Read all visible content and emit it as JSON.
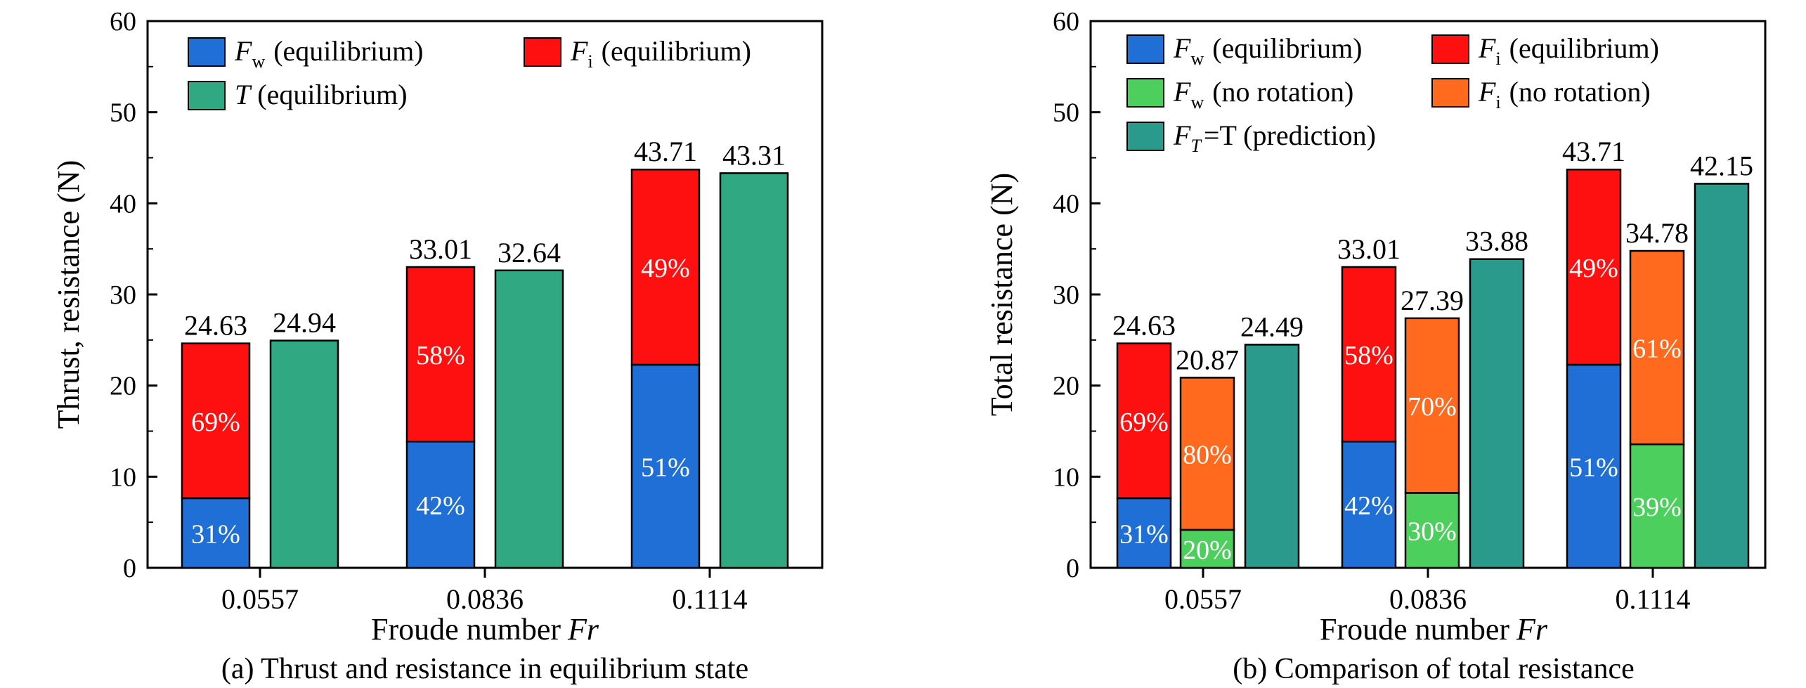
{
  "chart_data": [
    {
      "type": "bar",
      "stacked": true,
      "caption": "(a) Thrust and resistance in equilibrium state",
      "xlabel": "Froude number",
      "xlabel_symbol": "Fr",
      "ylabel": "Thrust, resistance (N)",
      "ylim": [
        0,
        60
      ],
      "yticks": [
        0,
        10,
        20,
        30,
        40,
        50,
        60
      ],
      "categories": [
        "0.0557",
        "0.0836",
        "0.1114"
      ],
      "grid": false,
      "legend_position": "top-left",
      "legend": [
        {
          "sym": "F",
          "sub": "w",
          "text": "(equilibrium)",
          "color": "#1f6fd6"
        },
        {
          "sym": "F",
          "sub": "i",
          "text": "(equilibrium)",
          "color": "#ff1010"
        },
        {
          "sym": "T",
          "sub": "",
          "text": "(equilibrium)",
          "color": "#30a882"
        }
      ],
      "bars": [
        {
          "segments": [
            {
              "values": [
                7.64,
                13.86,
                22.29
              ],
              "labels": [
                "31%",
                "42%",
                "51%"
              ],
              "color": "#1f6fd6"
            },
            {
              "values": [
                16.99,
                19.15,
                21.42
              ],
              "labels": [
                "69%",
                "58%",
                "49%"
              ],
              "color": "#ff1010"
            }
          ],
          "totals": [
            24.63,
            33.01,
            43.71
          ],
          "total_labels": [
            "24.63",
            "33.01",
            "43.71"
          ]
        },
        {
          "segments": [
            {
              "values": [
                24.94,
                32.64,
                43.31
              ],
              "labels": [
                "",
                "",
                ""
              ],
              "color": "#30a882"
            }
          ],
          "totals": [
            24.94,
            32.64,
            43.31
          ],
          "total_labels": [
            "24.94",
            "32.64",
            "43.31"
          ]
        }
      ]
    },
    {
      "type": "bar",
      "stacked": true,
      "caption": "(b) Comparison of total resistance",
      "xlabel": "Froude number",
      "xlabel_symbol": "Fr",
      "ylabel": "Total resistance (N)",
      "ylim": [
        0,
        60
      ],
      "yticks": [
        0,
        10,
        20,
        30,
        40,
        50,
        60
      ],
      "categories": [
        "0.0557",
        "0.0836",
        "0.1114"
      ],
      "grid": false,
      "legend_position": "top-left",
      "legend": [
        {
          "sym": "F",
          "sub": "w",
          "text": "(equilibrium)",
          "color": "#1f6fd6"
        },
        {
          "sym": "F",
          "sub": "i",
          "text": "(equilibrium)",
          "color": "#ff1010"
        },
        {
          "sym": "F",
          "sub": "w",
          "text": "(no rotation)",
          "color": "#4ccf5c"
        },
        {
          "sym": "F",
          "sub": "i",
          "text": "(no rotation)",
          "color": "#ff6a1f"
        },
        {
          "sym": "F",
          "sub": "T",
          "text": "=T (prediction)",
          "color": "#2a9a8c"
        }
      ],
      "bars": [
        {
          "segments": [
            {
              "values": [
                7.64,
                13.86,
                22.29
              ],
              "labels": [
                "31%",
                "42%",
                "51%"
              ],
              "color": "#1f6fd6"
            },
            {
              "values": [
                16.99,
                19.15,
                21.42
              ],
              "labels": [
                "69%",
                "58%",
                "49%"
              ],
              "color": "#ff1010"
            }
          ],
          "totals": [
            24.63,
            33.01,
            43.71
          ],
          "total_labels": [
            "24.63",
            "33.01",
            "43.71"
          ]
        },
        {
          "segments": [
            {
              "values": [
                4.17,
                8.22,
                13.56
              ],
              "labels": [
                "20%",
                "30%",
                "39%"
              ],
              "color": "#4ccf5c"
            },
            {
              "values": [
                16.7,
                19.17,
                21.22
              ],
              "labels": [
                "80%",
                "70%",
                "61%"
              ],
              "color": "#ff6a1f"
            }
          ],
          "totals": [
            20.87,
            27.39,
            34.78
          ],
          "total_labels": [
            "20.87",
            "27.39",
            "34.78"
          ]
        },
        {
          "segments": [
            {
              "values": [
                24.49,
                33.88,
                42.15
              ],
              "labels": [
                "",
                "",
                ""
              ],
              "color": "#2a9a8c"
            }
          ],
          "totals": [
            24.49,
            33.88,
            42.15
          ],
          "total_labels": [
            "24.49",
            "33.88",
            "42.15"
          ]
        }
      ]
    }
  ]
}
